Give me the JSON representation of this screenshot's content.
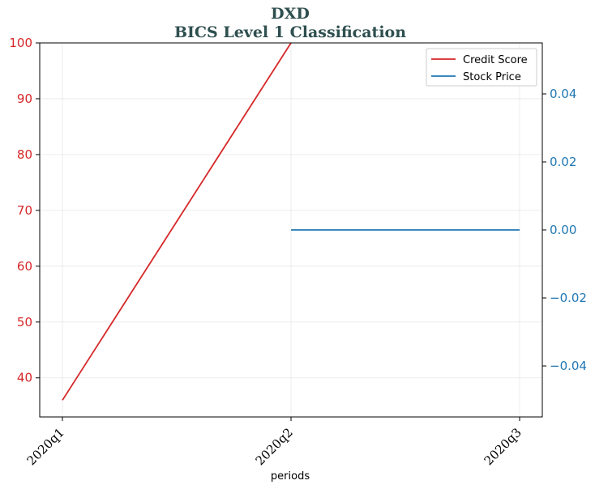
{
  "chart_data": {
    "type": "line",
    "title": "DXD",
    "subtitle": "BICS Level 1 Classification",
    "xlabel": "periods",
    "categories": [
      "2020q1",
      "2020q2",
      "2020q3"
    ],
    "left_axis": {
      "ylim": [
        33,
        100
      ],
      "ticks": [
        40,
        50,
        60,
        70,
        80,
        90,
        100
      ],
      "color": "#d62728"
    },
    "right_axis": {
      "ylim": [
        -0.055,
        0.055
      ],
      "ticks": [
        -0.04,
        -0.02,
        0.0,
        0.02,
        0.04
      ],
      "tick_labels": [
        "−0.04",
        "−0.02",
        "0.00",
        "0.02",
        "0.04"
      ],
      "color": "#1f77b4"
    },
    "series": [
      {
        "name": "Credit Score",
        "axis": "left",
        "color": "#d62728",
        "values": [
          36,
          100,
          null
        ]
      },
      {
        "name": "Stock Price",
        "axis": "right",
        "color": "#1f77b4",
        "values": [
          null,
          0.0,
          0.0
        ]
      }
    ],
    "grid": true,
    "legend_position": "top-right"
  }
}
